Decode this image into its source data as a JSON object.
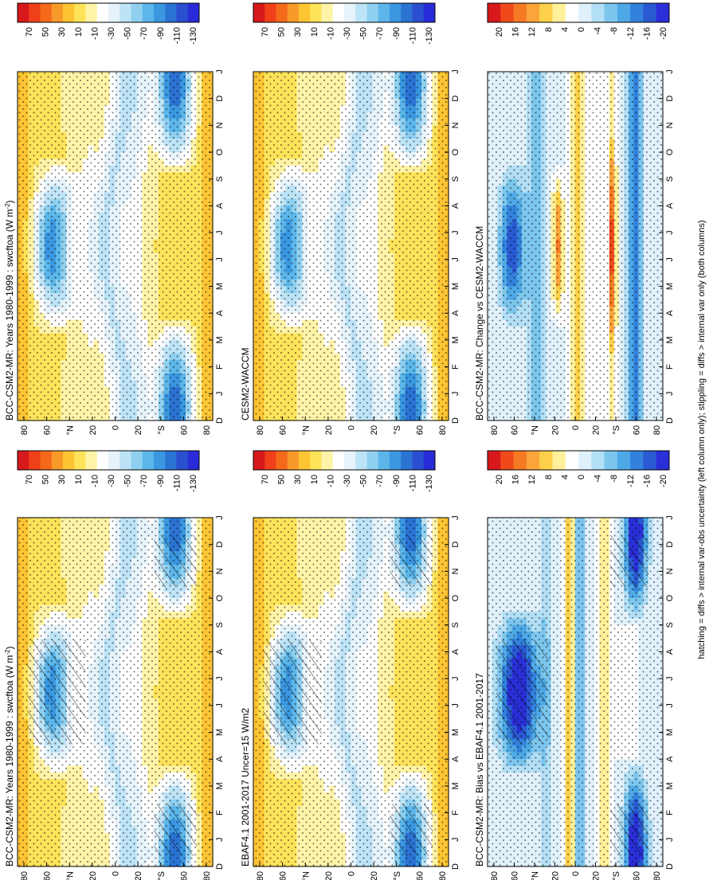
{
  "figure": {
    "footnote": "hatching = diffs > internal var-obs uncertainty (left column only); stippling = diffs > internal var only (both columns)"
  },
  "chart_data": [
    {
      "type": "heatmap",
      "title": "BCC-CSM2-MR: Years 1980-1999 : swcftoa (W m",
      "title_sup": "-2",
      "title_close": ")",
      "months": [
        "D",
        "J",
        "F",
        "M",
        "A",
        "M",
        "J",
        "J",
        "A",
        "S",
        "O",
        "N",
        "D",
        "J"
      ],
      "lat_ticks": [
        "80",
        "60",
        "°N",
        "20",
        "0",
        "20",
        "°S",
        "60",
        "80"
      ],
      "colorbar_labels": [
        "70",
        "50",
        "30",
        "10",
        "-10",
        "-30",
        "-50",
        "-70",
        "-90",
        "-110",
        "-130"
      ],
      "colormap": "full",
      "pattern": "mean",
      "hatching": true
    },
    {
      "type": "heatmap",
      "title": "EBAF4.1 2001-2017 Uncer=15 W/m2",
      "months": [
        "D",
        "J",
        "F",
        "M",
        "A",
        "M",
        "J",
        "J",
        "A",
        "S",
        "O",
        "N",
        "D",
        "J"
      ],
      "lat_ticks": [
        "80",
        "60",
        "°N",
        "20",
        "0",
        "20",
        "°S",
        "60",
        "80"
      ],
      "colorbar_labels": [
        "70",
        "50",
        "30",
        "10",
        "-10",
        "-30",
        "-50",
        "-70",
        "-90",
        "-110",
        "-130"
      ],
      "colormap": "full",
      "pattern": "mean",
      "hatching": true
    },
    {
      "type": "heatmap",
      "title": "BCC-CSM2-MR: Bias vs EBAF4.1 2001-2017",
      "months": [
        "D",
        "J",
        "F",
        "M",
        "A",
        "M",
        "J",
        "J",
        "A",
        "S",
        "O",
        "N",
        "D",
        "J"
      ],
      "lat_ticks": [
        "80",
        "60",
        "°N",
        "20",
        "0",
        "20",
        "°S",
        "60",
        "80"
      ],
      "colorbar_labels": [
        "20",
        "16",
        "12",
        "8",
        "4",
        "0",
        "-4",
        "-8",
        "-12",
        "-16",
        "-20"
      ],
      "colormap": "diff",
      "pattern": "bias",
      "hatching": true
    },
    {
      "type": "heatmap",
      "title": "BCC-CSM2-MR: Years 1980-1999 : swcftoa (W m",
      "title_sup": "-2",
      "title_close": ")",
      "months": [
        "D",
        "J",
        "F",
        "M",
        "A",
        "M",
        "J",
        "J",
        "A",
        "S",
        "O",
        "N",
        "D",
        "J"
      ],
      "lat_ticks": [
        "80",
        "60",
        "°N",
        "20",
        "0",
        "20",
        "°S",
        "60",
        "80"
      ],
      "colorbar_labels": [
        "70",
        "50",
        "30",
        "10",
        "-10",
        "-30",
        "-50",
        "-70",
        "-90",
        "-110",
        "-130"
      ],
      "colormap": "full",
      "pattern": "mean",
      "hatching": false
    },
    {
      "type": "heatmap",
      "title": "CESM2-WACCM",
      "months": [
        "D",
        "J",
        "F",
        "M",
        "A",
        "M",
        "J",
        "J",
        "A",
        "S",
        "O",
        "N",
        "D",
        "J"
      ],
      "lat_ticks": [
        "80",
        "60",
        "°N",
        "20",
        "0",
        "20",
        "°S",
        "60",
        "80"
      ],
      "colorbar_labels": [
        "70",
        "50",
        "30",
        "10",
        "-10",
        "-30",
        "-50",
        "-70",
        "-90",
        "-110",
        "-130"
      ],
      "colormap": "full",
      "pattern": "mean",
      "hatching": false
    },
    {
      "type": "heatmap",
      "title": "BCC-CSM2-MR: Change vs CESM2-WACCM",
      "months": [
        "D",
        "J",
        "F",
        "M",
        "A",
        "M",
        "J",
        "J",
        "A",
        "S",
        "O",
        "N",
        "D",
        "J"
      ],
      "lat_ticks": [
        "80",
        "60",
        "°N",
        "20",
        "0",
        "20",
        "°S",
        "60",
        "80"
      ],
      "colorbar_labels": [
        "20",
        "16",
        "12",
        "8",
        "4",
        "0",
        "-4",
        "-8",
        "-12",
        "-16",
        "-20"
      ],
      "colormap": "diff",
      "pattern": "change",
      "hatching": false
    }
  ],
  "colormaps": {
    "full": [
      "#d7191c",
      "#f0401a",
      "#f46a1a",
      "#f89a2a",
      "#fdc534",
      "#fde35a",
      "#fff3a8",
      "#ffffff",
      "#e6f3fb",
      "#bde3f6",
      "#8fd0f0",
      "#5cb6ea",
      "#3a97e0",
      "#2b73d3",
      "#2a4fcf",
      "#2a2bd8"
    ],
    "diff": [
      "#d7191c",
      "#f04a1c",
      "#f67a24",
      "#fba43a",
      "#fdd049",
      "#fff09a",
      "#ffffff",
      "#e1f1fb",
      "#b2dff5",
      "#7cc6ee",
      "#4fa8e6",
      "#3282dc",
      "#2a5ad2",
      "#2a2fd8"
    ]
  }
}
